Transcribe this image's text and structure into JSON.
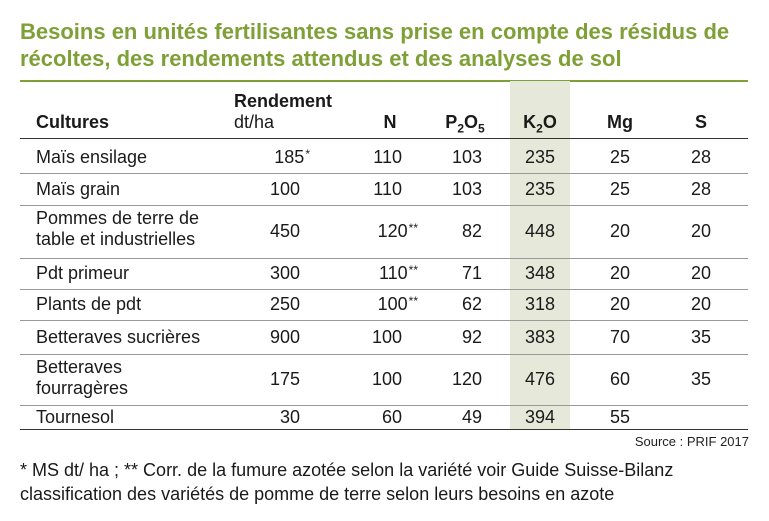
{
  "title": "Besoins en unités fertilisantes sans prise en compte des résidus de récoltes, des rendements attendus et des analyses de sol",
  "header": {
    "cultures": "Cultures",
    "rendement": "Rendement",
    "rendement_unit": "dt/ha",
    "n": "N",
    "p2o5_base": "P",
    "p2o5_sub1": "2",
    "p2o5_mid": "O",
    "p2o5_sub2": "5",
    "k2o_base": "K",
    "k2o_sub": "2",
    "k2o_end": "O",
    "mg": "Mg",
    "s": "S"
  },
  "rows": [
    {
      "culture": [
        "Maïs ensilage"
      ],
      "rendement": "185",
      "rend_mark": "*",
      "n": "110",
      "n_mark": "",
      "p": "103",
      "k": "235",
      "mg": "25",
      "s": "28"
    },
    {
      "culture": [
        "Maïs grain"
      ],
      "rendement": "100",
      "rend_mark": "",
      "n": "110",
      "n_mark": "",
      "p": "103",
      "k": "235",
      "mg": "25",
      "s": "28"
    },
    {
      "culture": [
        "Pommes de terre de",
        "table et industrielles"
      ],
      "rendement": "450",
      "rend_mark": "",
      "n": "120",
      "n_mark": "**",
      "p": "82",
      "k": "448",
      "mg": "20",
      "s": "20"
    },
    {
      "culture": [
        "Pdt primeur"
      ],
      "rendement": "300",
      "rend_mark": "",
      "n": "110",
      "n_mark": "**",
      "p": "71",
      "k": "348",
      "mg": "20",
      "s": "20"
    },
    {
      "culture": [
        "Plants de pdt"
      ],
      "rendement": "250",
      "rend_mark": "",
      "n": "100",
      "n_mark": "**",
      "p": "62",
      "k": "318",
      "mg": "20",
      "s": "20"
    },
    {
      "culture": [
        "Betteraves sucrières"
      ],
      "rendement": "900",
      "rend_mark": "",
      "n": "100",
      "n_mark": "",
      "p": "92",
      "k": "383",
      "mg": "70",
      "s": "35"
    },
    {
      "culture": [
        "Betteraves",
        "fourragères"
      ],
      "rendement": "175",
      "rend_mark": "",
      "n": "100",
      "n_mark": "",
      "p": "120",
      "k": "476",
      "mg": "60",
      "s": "35"
    },
    {
      "culture": [
        "Tournesol"
      ],
      "rendement": "30",
      "rend_mark": "",
      "n": "60",
      "n_mark": "",
      "p": "49",
      "k": "394",
      "mg": "55",
      "s": ""
    }
  ],
  "source": "Source : PRIF 2017",
  "note_line1": "* MS dt/ ha ; ** Corr. de la fumure azotée selon la variété voir Guide Suisse-Bilanz",
  "note_line2": "classification des variétés de pomme de terre selon leurs besoins en azote",
  "colors": {
    "accent": "#7ea036",
    "k2o_band": "#e6e8da"
  }
}
